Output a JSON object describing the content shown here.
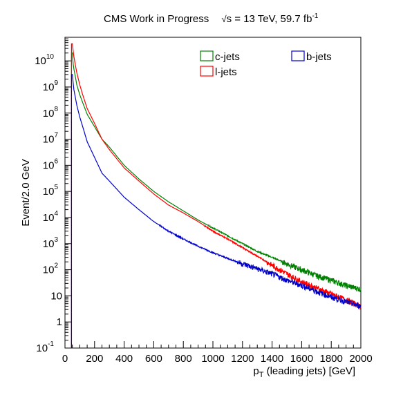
{
  "title": {
    "experiment": "CMS Work in Progress",
    "energy": "s = 13 TeV, 59.7 fb",
    "lumi_exponent": "-1"
  },
  "chart_data": {
    "type": "line",
    "xlabel": "p_T (leading jets) [GeV]",
    "ylabel": "Event/2.0 GeV",
    "xlim": [
      0,
      2000
    ],
    "ylim": [
      0.1,
      80000000000
    ],
    "yscale": "log",
    "grid": false,
    "legend_position": "top-right",
    "x_ticks": [
      0,
      200,
      400,
      600,
      800,
      1000,
      1200,
      1400,
      1600,
      1800,
      2000
    ],
    "y_ticks": [
      {
        "value": 0.1,
        "label_base": "10",
        "label_exp": "-1"
      },
      {
        "value": 1,
        "label_base": "1",
        "label_exp": ""
      },
      {
        "value": 10,
        "label_base": "10",
        "label_exp": ""
      },
      {
        "value": 100,
        "label_base": "10",
        "label_exp": "2"
      },
      {
        "value": 1000,
        "label_base": "10",
        "label_exp": "3"
      },
      {
        "value": 10000,
        "label_base": "10",
        "label_exp": "4"
      },
      {
        "value": 100000,
        "label_base": "10",
        "label_exp": "5"
      },
      {
        "value": 1000000,
        "label_base": "10",
        "label_exp": "6"
      },
      {
        "value": 10000000,
        "label_base": "10",
        "label_exp": "7"
      },
      {
        "value": 100000000,
        "label_base": "10",
        "label_exp": "8"
      },
      {
        "value": 1000000000,
        "label_base": "10",
        "label_exp": "9"
      },
      {
        "value": 10000000000,
        "label_base": "10",
        "label_exp": "10"
      }
    ],
    "series": [
      {
        "name": "c-jets",
        "color": "#008000",
        "x": [
          50,
          55,
          60,
          70,
          80,
          100,
          120,
          150,
          200,
          250,
          300,
          400,
          500,
          600,
          700,
          800,
          900,
          1000,
          1100,
          1200,
          1300,
          1400,
          1500,
          1600,
          1700,
          1800,
          1900,
          2000
        ],
        "y": [
          20000000000,
          8000000000,
          5000000000,
          2500000000,
          1200000000,
          500000000,
          250000000,
          90000000,
          30000000,
          10000000,
          5000000,
          1000000,
          300000,
          100000,
          40000,
          18000,
          8000,
          4000,
          2000,
          1000,
          500,
          300,
          170,
          100,
          60,
          40,
          25,
          18
        ]
      },
      {
        "name": "l-jets",
        "color": "#ff0000",
        "x": [
          50,
          55,
          60,
          70,
          80,
          100,
          120,
          150,
          200,
          250,
          300,
          400,
          500,
          600,
          700,
          800,
          900,
          1000,
          1100,
          1200,
          1300,
          1400,
          1500,
          1600,
          1700,
          1800,
          1900,
          2000
        ],
        "y": [
          45000000000,
          25000000000,
          15000000000,
          7000000000,
          3500000000,
          1200000000,
          500000000,
          150000000,
          40000000,
          10000000,
          4000000,
          800000,
          250000,
          80000,
          30000,
          15000,
          7000,
          3000,
          1500,
          700,
          330,
          150,
          70,
          35,
          20,
          12,
          7,
          4
        ]
      },
      {
        "name": "b-jets",
        "color": "#0000cc",
        "x": [
          50,
          55,
          60,
          70,
          80,
          100,
          120,
          150,
          200,
          250,
          300,
          400,
          500,
          600,
          700,
          800,
          900,
          1000,
          1100,
          1200,
          1300,
          1400,
          1500,
          1600,
          1700,
          1800,
          1900,
          2000
        ],
        "y": [
          3000000000,
          1500000000,
          800000000,
          400000000,
          200000000,
          70000000,
          30000000,
          8000000,
          2000000,
          500000,
          250000,
          60000,
          20000,
          7000,
          3000,
          1500,
          800,
          450,
          270,
          170,
          110,
          70,
          40,
          25,
          15,
          9,
          6,
          4
        ]
      }
    ]
  }
}
